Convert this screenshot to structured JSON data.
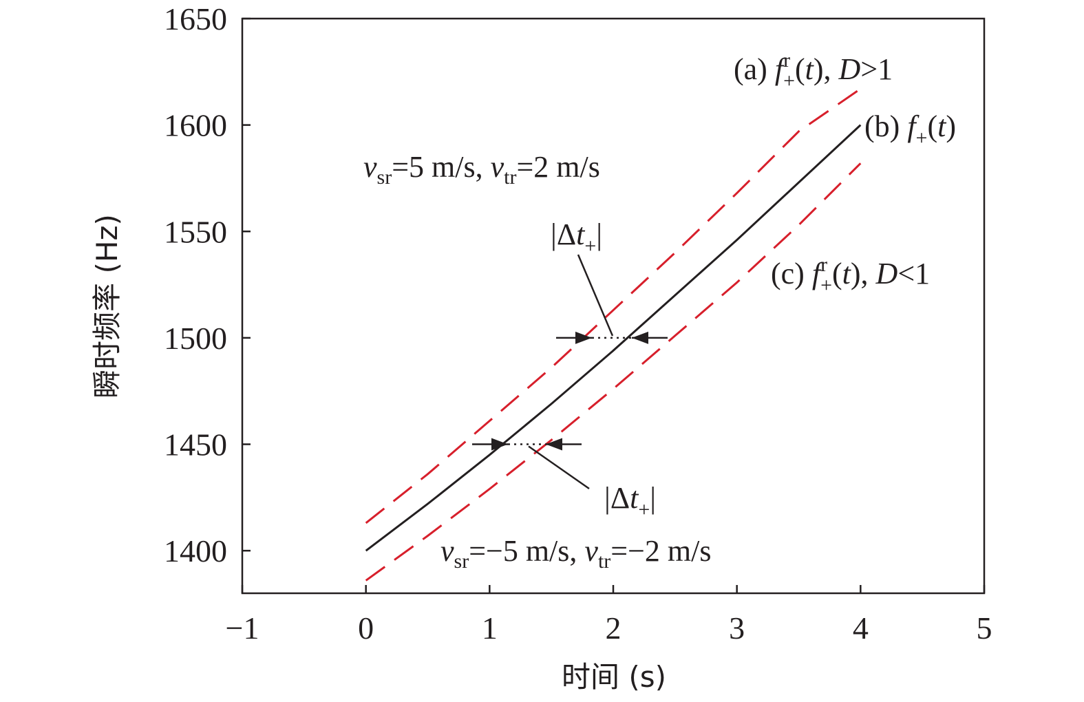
{
  "chart_data": {
    "type": "line",
    "title": "",
    "xlabel": "时间 (s)",
    "ylabel": "瞬时频率 (Hz)",
    "xlim": [
      -1,
      5
    ],
    "ylim": [
      1380,
      1650
    ],
    "x_ticks": [
      "−1",
      "0",
      "1",
      "2",
      "3",
      "4",
      "5"
    ],
    "y_ticks": [
      "1400",
      "1450",
      "1500",
      "1550",
      "1600",
      "1650"
    ],
    "grid": false,
    "series": [
      {
        "label_text": "(a)",
        "style": "dashed",
        "color": "#d71f2b",
        "x": [
          0,
          0.5,
          1,
          1.5,
          2,
          2.5,
          3,
          3.5,
          4
        ],
        "y": [
          1413,
          1436,
          1461,
          1486,
          1513,
          1540,
          1568,
          1597,
          1617
        ]
      },
      {
        "label_text": "(b)",
        "style": "solid",
        "color": "#231f20",
        "x": [
          0,
          0.5,
          1,
          1.5,
          2,
          2.5,
          3,
          3.5,
          4
        ],
        "y": [
          1400,
          1422,
          1445,
          1469,
          1494,
          1520,
          1546,
          1573,
          1600
        ]
      },
      {
        "label_text": "(c)",
        "style": "dashed",
        "color": "#d71f2b",
        "x": [
          0,
          0.5,
          1,
          1.5,
          2,
          2.5,
          3,
          3.5,
          4
        ],
        "y": [
          1386,
          1407,
          1429,
          1452,
          1476,
          1501,
          1526,
          1553,
          1582
        ]
      }
    ],
    "annotations": {
      "upper_velocity": {
        "v1": "v",
        "s1": "sr",
        "t1": "=5 m/s, ",
        "v2": "v",
        "s2": "tr",
        "t2": "=2 m/s"
      },
      "lower_velocity": {
        "v1": "v",
        "s1": "sr",
        "t1": "=−5 m/s, ",
        "v2": "v",
        "s2": "tr",
        "t2": "=−2 m/s"
      },
      "curve_a": {
        "prefix": "(a) ",
        "f": "f",
        "sup": "r",
        "sub": "+",
        "paren1": "(",
        "t": "t",
        "paren2": "), ",
        "D": "D",
        "cond": ">1"
      },
      "curve_b": {
        "prefix": "(b) ",
        "f": "f",
        "sub": "+",
        "paren1": "(",
        "t": "t",
        "paren2": ")"
      },
      "curve_c": {
        "prefix": "(c) ",
        "f": "f",
        "sup": "r",
        "sub": "+",
        "paren1": "(",
        "t": "t",
        "paren2": "), ",
        "D": "D",
        "cond": "<1"
      },
      "delta_upper": {
        "bar1": "|",
        "delta": "Δ",
        "t": "t",
        "sub": "+",
        "bar2": "|"
      },
      "delta_lower": {
        "bar1": "|",
        "delta": "Δ",
        "t": "t",
        "sub": "+",
        "bar2": "|"
      }
    }
  }
}
